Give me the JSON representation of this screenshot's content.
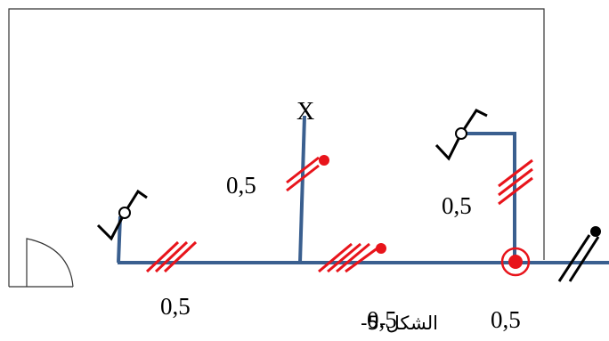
{
  "diagram": {
    "caption": "الشكل-5-",
    "point_label": "X",
    "dimension_labels": [
      "0,5",
      "0,5",
      "0,5",
      "0,5",
      "0,5"
    ]
  },
  "colors": {
    "wire": "#3a5f8f",
    "hatch": "#e8141b",
    "outline": "#333333",
    "text": "#000000",
    "black_mark": "#000000"
  }
}
